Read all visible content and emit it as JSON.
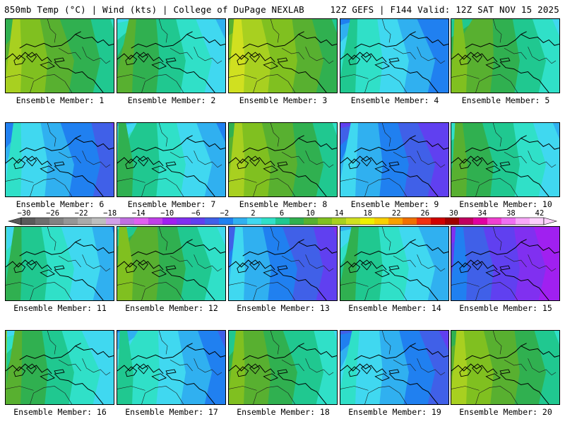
{
  "header": {
    "left": "850mb Temp (°C) | Wind (kts) | College of DuPage NEXLAB",
    "right": "12Z GEFS | F144 Valid: 12Z SAT NOV 15 2025"
  },
  "panels": [
    {
      "label": "Ensemble Member: 1"
    },
    {
      "label": "Ensemble Member: 2"
    },
    {
      "label": "Ensemble Member: 3"
    },
    {
      "label": "Ensemble Member: 4"
    },
    {
      "label": "Ensemble Member: 5"
    },
    {
      "label": "Ensemble Member: 6"
    },
    {
      "label": "Ensemble Member: 7"
    },
    {
      "label": "Ensemble Member: 8"
    },
    {
      "label": "Ensemble Member: 9"
    },
    {
      "label": "Ensemble Member: 10"
    },
    {
      "label": "Ensemble Member: 11"
    },
    {
      "label": "Ensemble Member: 12"
    },
    {
      "label": "Ensemble Member: 13"
    },
    {
      "label": "Ensemble Member: 14"
    },
    {
      "label": "Ensemble Member: 15"
    },
    {
      "label": "Ensemble Member: 16"
    },
    {
      "label": "Ensemble Member: 17"
    },
    {
      "label": "Ensemble Member: 18"
    },
    {
      "label": "Ensemble Member: 19"
    },
    {
      "label": "Ensemble Member: 20"
    }
  ],
  "colorbar": {
    "labels": [
      "−30",
      "−26",
      "−22",
      "−18",
      "−14",
      "−10",
      "−6",
      "−2",
      "2",
      "6",
      "10",
      "14",
      "18",
      "22",
      "26",
      "30",
      "34",
      "38",
      "42"
    ],
    "colors": [
      "#5a5a5a",
      "#6e6e6e",
      "#828282",
      "#969696",
      "#aaaaaa",
      "#bebebe",
      "#d2a0e8",
      "#c070e0",
      "#e060f0",
      "#c040e8",
      "#a020f0",
      "#8030f0",
      "#6040f0",
      "#4060e8",
      "#2080f0",
      "#30b0f0",
      "#40d8f0",
      "#30e0c8",
      "#20c890",
      "#30b050",
      "#58b030",
      "#80c020",
      "#a8d020",
      "#d0e020",
      "#f0f000",
      "#f8d000",
      "#f8a000",
      "#f07000",
      "#f03010",
      "#d00000",
      "#a00000",
      "#c00060",
      "#e000a0",
      "#f040d0",
      "#f070f0",
      "#f8a8f8",
      "#fcd0fc"
    ]
  }
}
